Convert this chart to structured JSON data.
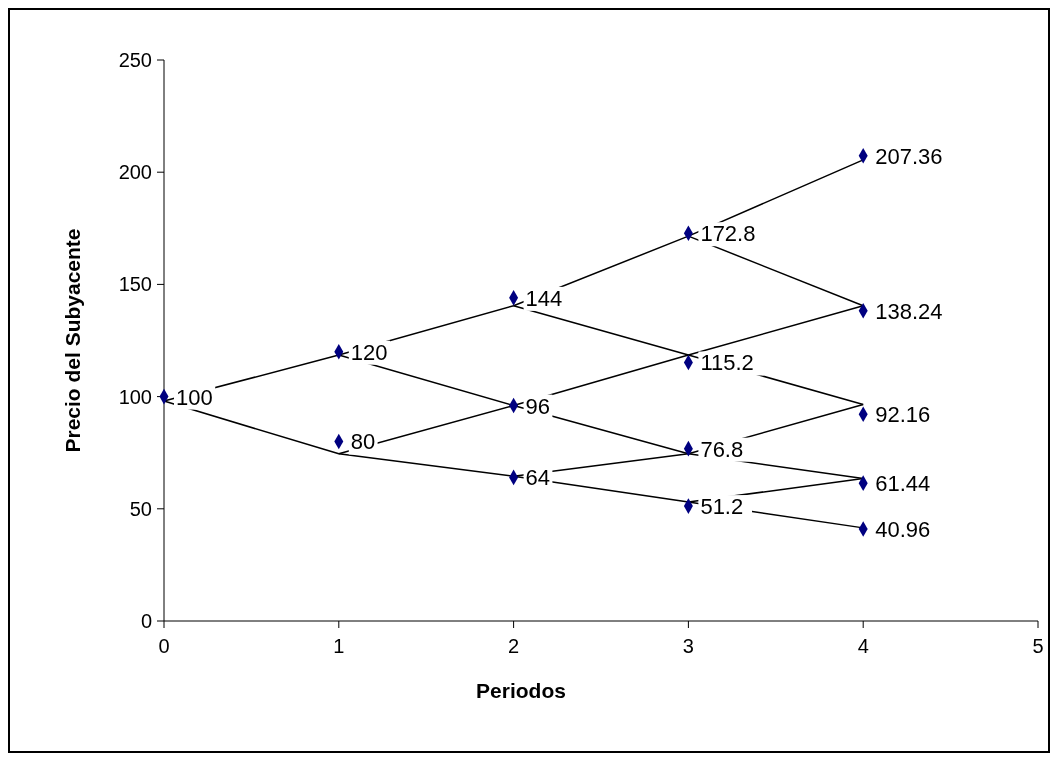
{
  "chart_data": {
    "type": "scatter",
    "xlabel": "Periodos",
    "ylabel": "Precio del Subyacente",
    "xlim": [
      0,
      5
    ],
    "xticks": [
      0,
      1,
      2,
      3,
      4,
      5
    ],
    "ylim": [
      0,
      250
    ],
    "yticks": [
      0,
      50,
      100,
      150,
      200,
      250
    ],
    "marker": "diamond",
    "series": [
      {
        "type": "line",
        "marker": "none",
        "color": "#000000",
        "x": [
          0,
          1,
          2,
          3,
          4
        ],
        "values": [
          98,
          118.5,
          140.5,
          171.5,
          205.5
        ]
      },
      {
        "type": "line",
        "marker": "none",
        "color": "#000000",
        "x": [
          0,
          1,
          2,
          3,
          4
        ],
        "values": [
          98,
          74.5,
          64.5,
          53,
          41.5
        ]
      },
      {
        "type": "line",
        "marker": "none",
        "color": "#000000",
        "x": [
          1,
          2,
          3,
          4
        ],
        "values": [
          118.5,
          96,
          74.5,
          63.5
        ]
      },
      {
        "type": "line",
        "marker": "none",
        "color": "#000000",
        "x": [
          1,
          2,
          3,
          4
        ],
        "values": [
          74.5,
          96,
          118.5,
          140.5
        ]
      },
      {
        "type": "line",
        "marker": "none",
        "color": "#000000",
        "x": [
          2,
          3,
          4
        ],
        "values": [
          140.5,
          118.5,
          96.5
        ]
      },
      {
        "type": "line",
        "marker": "none",
        "color": "#000000",
        "x": [
          3,
          4
        ],
        "values": [
          171.5,
          140.5
        ]
      },
      {
        "type": "line",
        "marker": "none",
        "color": "#000000",
        "x": [
          2,
          3,
          4
        ],
        "values": [
          64.5,
          74.5,
          96.5
        ]
      },
      {
        "type": "line",
        "marker": "none",
        "color": "#000000",
        "x": [
          3,
          4
        ],
        "values": [
          53,
          63.5
        ]
      },
      {
        "color": "#000080",
        "x": [
          0,
          1,
          1,
          2,
          2,
          2,
          3,
          3,
          3,
          3,
          4,
          4,
          4,
          4,
          4
        ],
        "values": [
          100,
          120,
          80,
          144,
          96,
          64,
          172.8,
          115.2,
          76.8,
          51.2,
          207.36,
          138.24,
          92.16,
          61.44,
          40.96
        ],
        "value_labels": [
          "100",
          "120",
          "80",
          "144",
          "96",
          "64",
          "172.8",
          "115.2",
          "76.8",
          "51.2",
          "207.36",
          "138.24",
          "92.16",
          "61.44",
          "40.96"
        ]
      }
    ]
  }
}
